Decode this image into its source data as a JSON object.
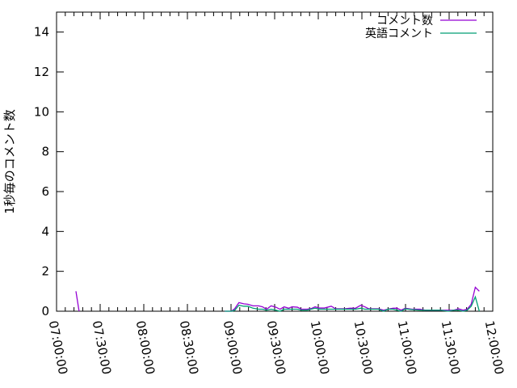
{
  "chart_data": {
    "type": "line",
    "title": "",
    "xlabel": "",
    "ylabel": "1秒毎のコメント数",
    "xlim": [
      "07:00:00",
      "12:00:00"
    ],
    "ylim": [
      0,
      15
    ],
    "x_ticks": [
      "07:00:00",
      "07:30:00",
      "08:00:00",
      "08:30:00",
      "09:00:00",
      "09:30:00",
      "10:00:00",
      "10:30:00",
      "11:00:00",
      "11:30:00",
      "12:00:00"
    ],
    "y_ticks": [
      0,
      2,
      4,
      6,
      8,
      10,
      12,
      14
    ],
    "grid": false,
    "legend": "top-right",
    "series": [
      {
        "name": "コメント数",
        "color": "#9400d3",
        "points": [
          [
            "07:13:20",
            1.0
          ],
          [
            "07:15:30",
            0
          ],
          [
            "08:55:40",
            0
          ],
          [
            "09:00:20",
            0
          ],
          [
            "09:02:35",
            0.13
          ],
          [
            "09:05:25",
            0.43
          ],
          [
            "09:08:45",
            0.37
          ],
          [
            "09:11:30",
            0.35
          ],
          [
            "09:15:10",
            0.27
          ],
          [
            "09:18:55",
            0.27
          ],
          [
            "09:21:40",
            0.22
          ],
          [
            "09:24:25",
            0.1
          ],
          [
            "09:27:35",
            0.27
          ],
          [
            "09:30:55",
            0.2
          ],
          [
            "09:33:40",
            0.1
          ],
          [
            "09:36:30",
            0.22
          ],
          [
            "09:39:35",
            0.15
          ],
          [
            "09:42:00",
            0.22
          ],
          [
            "09:45:40",
            0.2
          ],
          [
            "09:48:30",
            0.1
          ],
          [
            "09:52:15",
            0.1
          ],
          [
            "09:55:00",
            0.13
          ],
          [
            "09:57:50",
            0.22
          ],
          [
            "10:00:35",
            0.16
          ],
          [
            "10:04:15",
            0.16
          ],
          [
            "10:08:55",
            0.25
          ],
          [
            "10:12:00",
            0.12
          ],
          [
            "10:18:10",
            0.12
          ],
          [
            "10:21:50",
            0.15
          ],
          [
            "10:25:35",
            0.15
          ],
          [
            "10:29:15",
            0.3
          ],
          [
            "10:32:00",
            0.22
          ],
          [
            "10:34:50",
            0.12
          ],
          [
            "10:41:20",
            0.12
          ],
          [
            "10:45:00",
            0.05
          ],
          [
            "10:47:45",
            0.1
          ],
          [
            "10:51:30",
            0.15
          ],
          [
            "10:54:15",
            0.15
          ],
          [
            "10:57:00",
            0.05
          ],
          [
            "10:59:50",
            0.15
          ],
          [
            "11:04:25",
            0.1
          ],
          [
            "11:10:00",
            0.1
          ],
          [
            "11:13:40",
            0.05
          ],
          [
            "11:23:55",
            0.05
          ],
          [
            "11:29:25",
            0.05
          ],
          [
            "11:33:05",
            0.05
          ],
          [
            "11:36:30",
            0.12
          ],
          [
            "11:39:35",
            0.05
          ],
          [
            "11:42:25",
            0.1
          ],
          [
            "11:45:10",
            0.35
          ],
          [
            "11:48:00",
            1.2
          ],
          [
            "11:50:45",
            1.0
          ]
        ]
      },
      {
        "name": "英語コメント",
        "color": "#009e73",
        "points": [
          [
            "08:55:40",
            0
          ],
          [
            "09:00:20",
            0
          ],
          [
            "09:02:35",
            0.05
          ],
          [
            "09:05:25",
            0.3
          ],
          [
            "09:08:45",
            0.25
          ],
          [
            "09:11:30",
            0.25
          ],
          [
            "09:15:10",
            0.15
          ],
          [
            "09:18:55",
            0.1
          ],
          [
            "09:21:40",
            0.1
          ],
          [
            "09:24:25",
            0.05
          ],
          [
            "09:27:35",
            0.1
          ],
          [
            "09:30:55",
            0.05
          ],
          [
            "09:33:40",
            0
          ],
          [
            "09:36:30",
            0.1
          ],
          [
            "09:39:35",
            0.1
          ],
          [
            "09:42:00",
            0.1
          ],
          [
            "09:45:40",
            0.1
          ],
          [
            "09:48:30",
            0.05
          ],
          [
            "09:52:15",
            0.05
          ],
          [
            "09:55:00",
            0.1
          ],
          [
            "09:57:50",
            0.15
          ],
          [
            "10:00:35",
            0.1
          ],
          [
            "10:04:15",
            0.1
          ],
          [
            "10:08:55",
            0.1
          ],
          [
            "10:12:00",
            0.1
          ],
          [
            "10:18:10",
            0.1
          ],
          [
            "10:21:50",
            0.1
          ],
          [
            "10:25:35",
            0.1
          ],
          [
            "10:29:15",
            0.15
          ],
          [
            "10:32:00",
            0.1
          ],
          [
            "10:34:50",
            0.1
          ],
          [
            "10:41:20",
            0.1
          ],
          [
            "10:45:00",
            0
          ],
          [
            "10:47:45",
            0.1
          ],
          [
            "10:51:30",
            0.1
          ],
          [
            "10:54:15",
            0.05
          ],
          [
            "10:57:00",
            0
          ],
          [
            "10:59:50",
            0.12
          ],
          [
            "11:04:25",
            0.08
          ],
          [
            "11:10:00",
            0.05
          ],
          [
            "11:13:40",
            0.05
          ],
          [
            "11:23:55",
            0.05
          ],
          [
            "11:29:25",
            0
          ],
          [
            "11:33:05",
            0.05
          ],
          [
            "11:36:30",
            0.05
          ],
          [
            "11:39:35",
            0
          ],
          [
            "11:42:25",
            0.05
          ],
          [
            "11:45:10",
            0.25
          ],
          [
            "11:48:00",
            0.72
          ],
          [
            "11:50:45",
            0
          ]
        ]
      }
    ]
  }
}
